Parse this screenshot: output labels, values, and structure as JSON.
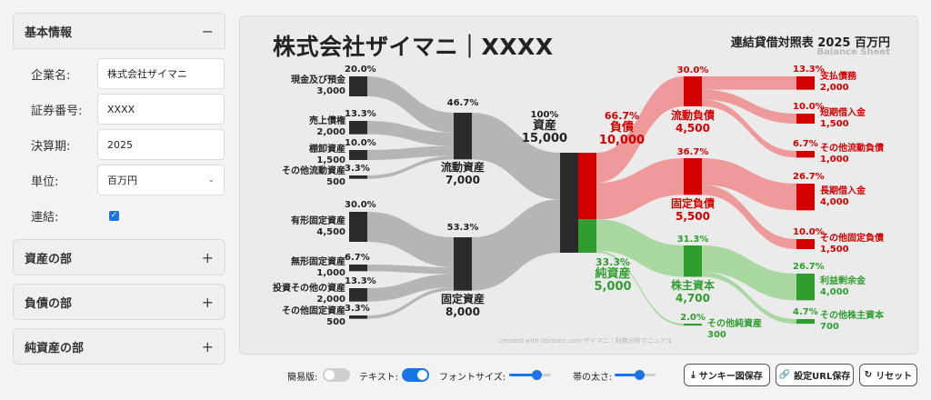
{
  "sidebar": {
    "basic": {
      "title": "基本情報",
      "toggle": "−"
    },
    "fields": [
      {
        "label": "企業名:",
        "value": "株式会社ザイマニ"
      },
      {
        "label": "証券番号:",
        "value": "XXXX"
      },
      {
        "label": "決算期:",
        "value": "2025"
      },
      {
        "label": "単位:",
        "value": "百万円"
      }
    ],
    "consolidated_label": "連結:",
    "sections": [
      {
        "title": "資産の部",
        "toggle": "+"
      },
      {
        "title": "負債の部",
        "toggle": "+"
      },
      {
        "title": "純資産の部",
        "toggle": "+"
      }
    ]
  },
  "chart": {
    "title": "株式会社ザイマニ｜XXXX",
    "subtitle": "連結貸借対照表 2025 百万円",
    "subtitle_en": "Balance Sheet",
    "credit": "created with zaimani.com ザイマニ｜財務分析マニュアル",
    "colors": {
      "asset": "#2b2b2b",
      "asset_flow": "#b5b5b5",
      "liability": "#d40000",
      "liability_flow": "#ef9a9a",
      "equity": "#2f9e2f",
      "equity_flow": "#a8d8a0"
    }
  },
  "chart_data": {
    "type": "sankey",
    "title": "株式会社ザイマニ｜XXXX",
    "total": {
      "name": "資産",
      "value": 15000,
      "pct": "100%"
    },
    "assets": [
      {
        "name": "流動資産",
        "value": 7000,
        "pct": "46.7%",
        "children": [
          {
            "name": "現金及び預金",
            "value": 3000,
            "pct": "20.0%"
          },
          {
            "name": "売上債権",
            "value": 2000,
            "pct": "13.3%"
          },
          {
            "name": "棚卸資産",
            "value": 1500,
            "pct": "10.0%"
          },
          {
            "name": "その他流動資産",
            "value": 500,
            "pct": "3.3%"
          }
        ]
      },
      {
        "name": "固定資産",
        "value": 8000,
        "pct": "53.3%",
        "children": [
          {
            "name": "有形固定資産",
            "value": 4500,
            "pct": "30.0%"
          },
          {
            "name": "無形固定資産",
            "value": 1000,
            "pct": "6.7%"
          },
          {
            "name": "投資その他の資産",
            "value": 2000,
            "pct": "13.3%"
          },
          {
            "name": "その他固定資産",
            "value": 500,
            "pct": "3.3%"
          }
        ]
      }
    ],
    "liabilities": {
      "name": "負債",
      "value": 10000,
      "pct": "66.7%",
      "children": [
        {
          "name": "流動負債",
          "value": 4500,
          "pct": "30.0%",
          "children": [
            {
              "name": "支払債務",
              "value": 2000,
              "pct": "13.3%"
            },
            {
              "name": "短期借入金",
              "value": 1500,
              "pct": "10.0%"
            },
            {
              "name": "その他流動負債",
              "value": 1000,
              "pct": "6.7%"
            }
          ]
        },
        {
          "name": "固定負債",
          "value": 5500,
          "pct": "36.7%",
          "children": [
            {
              "name": "長期借入金",
              "value": 4000,
              "pct": "26.7%"
            },
            {
              "name": "その他固定負債",
              "value": 1500,
              "pct": "10.0%"
            }
          ]
        }
      ]
    },
    "equity": {
      "name": "純資産",
      "value": 5000,
      "pct": "33.3%",
      "children": [
        {
          "name": "株主資本",
          "value": 4700,
          "pct": "31.3%",
          "children": [
            {
              "name": "利益剰余金",
              "value": 4000,
              "pct": "26.7%"
            },
            {
              "name": "その他株主資本",
              "value": 700,
              "pct": "4.7%"
            }
          ]
        },
        {
          "name": "その他純資産",
          "value": 300,
          "pct": "2.0%"
        }
      ]
    }
  },
  "controls": {
    "simple_label": "簡易版:",
    "text_label": "テキスト:",
    "font_size_label": "フォントサイズ:",
    "band_width_label": "帯の太さ:",
    "font_size_level": 0.65,
    "band_width_level": 0.6,
    "simple_on": false,
    "text_on": true,
    "save_sankey": "サンキー図保存",
    "save_url": "設定URL保存",
    "reset": "リセット"
  }
}
